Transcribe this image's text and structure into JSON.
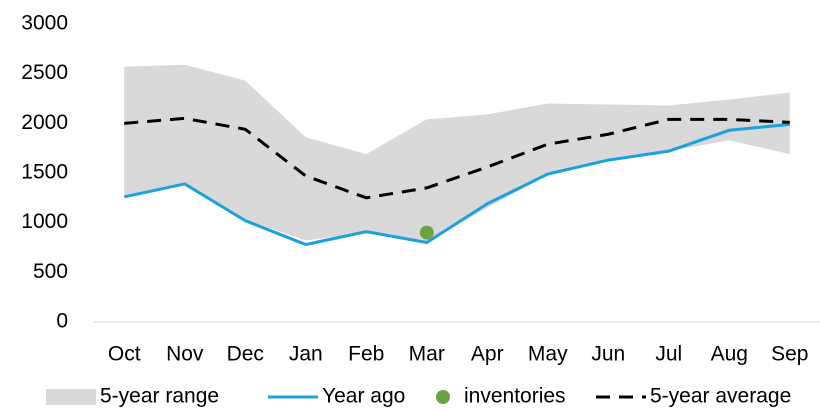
{
  "chart_data": {
    "type": "line",
    "categories": [
      "Oct",
      "Nov",
      "Dec",
      "Jan",
      "Feb",
      "Mar",
      "Apr",
      "May",
      "Jun",
      "Jul",
      "Aug",
      "Sep"
    ],
    "series": [
      {
        "name": "5-year range",
        "type": "range",
        "color": "#d9d9d9",
        "low": [
          1270,
          1390,
          1030,
          820,
          900,
          800,
          1150,
          1480,
          1640,
          1720,
          1830,
          1690
        ],
        "high": [
          2570,
          2590,
          2430,
          1860,
          1690,
          2040,
          2090,
          2200,
          2190,
          2180,
          2240,
          2310
        ]
      },
      {
        "name": "Year ago",
        "type": "line",
        "color": "#1ba1dc",
        "values": [
          1260,
          1390,
          1020,
          780,
          910,
          800,
          1190,
          1490,
          1630,
          1720,
          1930,
          1990
        ]
      },
      {
        "name": "inventories",
        "type": "scatter",
        "color": "#6aa341",
        "values": [
          null,
          null,
          null,
          null,
          null,
          900,
          null,
          null,
          null,
          null,
          null,
          null
        ]
      },
      {
        "name": "5-year average",
        "type": "line",
        "color": "#000000",
        "dashed": true,
        "values": [
          2000,
          2050,
          1940,
          1470,
          1250,
          1350,
          1560,
          1790,
          1890,
          2040,
          2040,
          2010
        ]
      }
    ],
    "ylim": [
      0,
      3000
    ],
    "yticks": [
      0,
      500,
      1000,
      1500,
      2000,
      2500,
      3000
    ],
    "grid": false,
    "legend": "bottom"
  }
}
